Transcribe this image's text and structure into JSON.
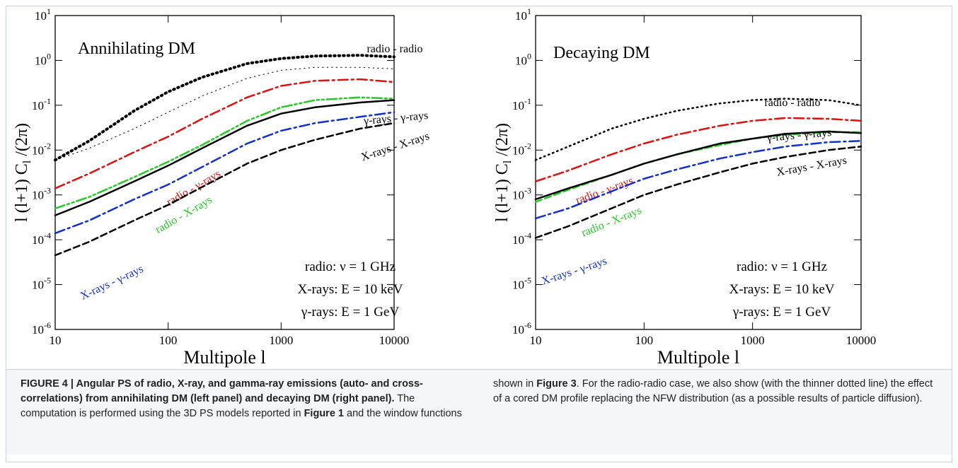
{
  "chart_data": [
    {
      "type": "line",
      "title": "Annihilating DM",
      "xlabel": "Multipole l",
      "ylabel": [
        "l (l+1) C",
        "l",
        " /(2π)"
      ],
      "log_x": true,
      "log_y": true,
      "xlim": [
        10,
        10000
      ],
      "ylim": [
        1e-06,
        10
      ],
      "xticks": [
        10,
        100,
        1000,
        10000
      ],
      "yticks": [
        {
          "value": 1e-06,
          "label": "10",
          "power": "-6"
        },
        {
          "value": 1e-05,
          "label": "10",
          "power": "-5"
        },
        {
          "value": 0.0001,
          "label": "10",
          "power": "-4"
        },
        {
          "value": 0.001,
          "label": "10",
          "power": "-3"
        },
        {
          "value": 0.01,
          "label": "10",
          "power": "-2"
        },
        {
          "value": 0.1,
          "label": "10",
          "power": "-1"
        },
        {
          "value": 1,
          "label": "10",
          "power": "0"
        },
        {
          "value": 10,
          "label": "10",
          "power": "1"
        }
      ],
      "annotations": [
        "radio: ν = 1 GHz",
        "X-rays: E = 10 keV",
        "γ-rays: E = 1 GeV"
      ],
      "x": [
        10,
        20,
        50,
        100,
        200,
        500,
        1000,
        2000,
        5000,
        10000
      ],
      "series": [
        {
          "name": "radio - radio",
          "color": "#000000",
          "dash": "dotted",
          "width": 4,
          "values": [
            0.006,
            0.016,
            0.075,
            0.2,
            0.42,
            0.85,
            1.1,
            1.25,
            1.3,
            1.2
          ]
        },
        {
          "color": "#000000",
          "dash": "dotted",
          "width": 1,
          "values": [
            0.006,
            0.011,
            0.03,
            0.07,
            0.16,
            0.4,
            0.6,
            0.7,
            0.7,
            0.65
          ]
        },
        {
          "name": "radio - γ-rays",
          "color": "#e01010",
          "dash": "dashdot",
          "width": 2.5,
          "values": [
            0.0014,
            0.003,
            0.009,
            0.02,
            0.05,
            0.15,
            0.27,
            0.35,
            0.38,
            0.33
          ]
        },
        {
          "name": "radio - X-rays",
          "color": "#22cc22",
          "dash": "dashdotdot",
          "width": 2.5,
          "values": [
            0.0005,
            0.0009,
            0.0025,
            0.0055,
            0.013,
            0.045,
            0.09,
            0.13,
            0.15,
            0.14
          ]
        },
        {
          "name": "γ-rays - γ-rays",
          "color": "#000000",
          "dash": "solid",
          "width": 2.5,
          "values": [
            0.00035,
            0.0007,
            0.002,
            0.0045,
            0.011,
            0.035,
            0.065,
            0.09,
            0.115,
            0.13
          ]
        },
        {
          "name": "X-rays - γ-rays",
          "color": "#1030d0",
          "dash": "dashdot",
          "width": 2.5,
          "values": [
            0.00014,
            0.00027,
            0.0008,
            0.0017,
            0.0042,
            0.014,
            0.027,
            0.04,
            0.055,
            0.07
          ]
        },
        {
          "name": "X-rays - X-rays",
          "color": "#000000",
          "dash": "dashed",
          "width": 2.5,
          "values": [
            4.5e-05,
            9e-05,
            0.00027,
            0.0006,
            0.0015,
            0.005,
            0.01,
            0.017,
            0.03,
            0.04
          ]
        }
      ]
    },
    {
      "type": "line",
      "title": "Decaying DM",
      "xlabel": "Multipole l",
      "ylabel": [
        "l (l+1) C",
        "l",
        " /(2π)"
      ],
      "log_x": true,
      "log_y": true,
      "xlim": [
        10,
        10000
      ],
      "ylim": [
        1e-06,
        10
      ],
      "xticks": [
        10,
        100,
        1000,
        10000
      ],
      "yticks": [
        {
          "value": 1e-06,
          "label": "10",
          "power": "-6"
        },
        {
          "value": 1e-05,
          "label": "10",
          "power": "-5"
        },
        {
          "value": 0.0001,
          "label": "10",
          "power": "-4"
        },
        {
          "value": 0.001,
          "label": "10",
          "power": "-3"
        },
        {
          "value": 0.01,
          "label": "10",
          "power": "-2"
        },
        {
          "value": 0.1,
          "label": "10",
          "power": "-1"
        },
        {
          "value": 1,
          "label": "10",
          "power": "0"
        },
        {
          "value": 10,
          "label": "10",
          "power": "1"
        }
      ],
      "annotations": [
        "radio: ν = 1 GHz",
        "X-rays: E = 10 keV",
        "γ-rays: E = 1 GeV"
      ],
      "x": [
        10,
        20,
        50,
        100,
        200,
        500,
        1000,
        2000,
        5000,
        10000
      ],
      "series": [
        {
          "name": "radio - radio",
          "color": "#000000",
          "dash": "dotted",
          "width": 2.5,
          "values": [
            0.006,
            0.012,
            0.03,
            0.05,
            0.075,
            0.11,
            0.13,
            0.14,
            0.13,
            0.1
          ]
        },
        {
          "name": "radio - γ-rays",
          "color": "#e01010",
          "dash": "dashdot",
          "width": 2.5,
          "values": [
            0.002,
            0.0035,
            0.008,
            0.014,
            0.022,
            0.035,
            0.045,
            0.052,
            0.05,
            0.045
          ]
        },
        {
          "name": "radio - X-rays",
          "color": "#22cc22",
          "dash": "dashed",
          "width": 2.5,
          "values": [
            0.0007,
            0.0013,
            0.0028,
            0.005,
            0.008,
            0.013,
            0.018,
            0.022,
            0.025,
            0.025
          ]
        },
        {
          "name": "γ-rays - γ-rays",
          "color": "#000000",
          "dash": "solid",
          "width": 2.5,
          "values": [
            0.0008,
            0.0014,
            0.0028,
            0.005,
            0.008,
            0.014,
            0.018,
            0.023,
            0.026,
            0.024
          ]
        },
        {
          "name": "X-rays - γ-rays",
          "color": "#1030d0",
          "dash": "dashdot",
          "width": 2.5,
          "values": [
            0.0003,
            0.0005,
            0.0012,
            0.0023,
            0.0037,
            0.0065,
            0.009,
            0.012,
            0.015,
            0.016
          ]
        },
        {
          "name": "X-rays - X-rays",
          "color": "#000000",
          "dash": "dashed",
          "width": 2.5,
          "values": [
            0.00011,
            0.0002,
            0.0005,
            0.001,
            0.0017,
            0.0032,
            0.005,
            0.007,
            0.01,
            0.012
          ]
        }
      ]
    }
  ],
  "caption": [
    {
      "text": "FIGURE 4 | Angular PS of radio, X-ray, and gamma-ray emissions (auto- and cross-correlations) from annihilating DM (left panel) and decaying DM (right panel).",
      "bold": true
    },
    {
      "text": " The computation is performed using the 3D PS models reported in ",
      "bold": false
    },
    {
      "text": "Figure 1",
      "bold": true
    },
    {
      "text": " and the window functions shown in ",
      "bold": false
    },
    {
      "text": "Figure 3",
      "bold": true
    },
    {
      "text": ". For the radio-radio case, we also show (with the thinner dotted line) the effect of a cored DM profile replacing the NFW distribution (as a possible results of particle diffusion).",
      "bold": false
    }
  ]
}
